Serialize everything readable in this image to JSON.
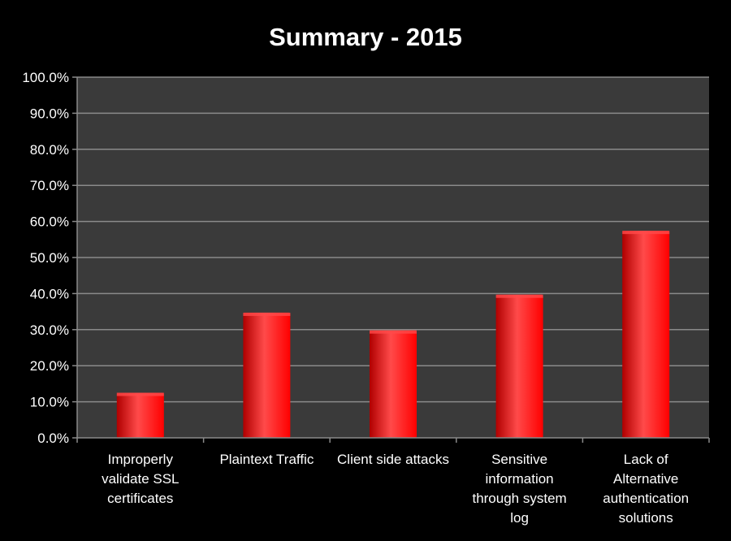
{
  "chart_data": {
    "type": "bar",
    "title": "Summary - 2015",
    "categories": [
      [
        "Improperly",
        "validate SSL",
        "certificates"
      ],
      [
        "Plaintext Traffic"
      ],
      [
        "Client side attacks"
      ],
      [
        "Sensitive",
        "information",
        "through system",
        "log"
      ],
      [
        "Lack of",
        "Alternative",
        "authentication",
        "solutions"
      ]
    ],
    "values": [
      12.5,
      34.7,
      29.8,
      39.7,
      57.4
    ],
    "ylim": [
      0,
      100
    ],
    "yticks": [
      "0.0%",
      "10.0%",
      "20.0%",
      "30.0%",
      "40.0%",
      "50.0%",
      "60.0%",
      "70.0%",
      "80.0%",
      "90.0%",
      "100.0%"
    ],
    "grid": true,
    "legend": "none",
    "colors": {
      "background": "#000000",
      "plot_background": "#3a3a3a",
      "bar": "#ff0000",
      "bar_highlight": "#ff4a4a",
      "bar_shadow": "#b00000",
      "grid": "#8a8a8a",
      "text": "#ffffff"
    }
  }
}
